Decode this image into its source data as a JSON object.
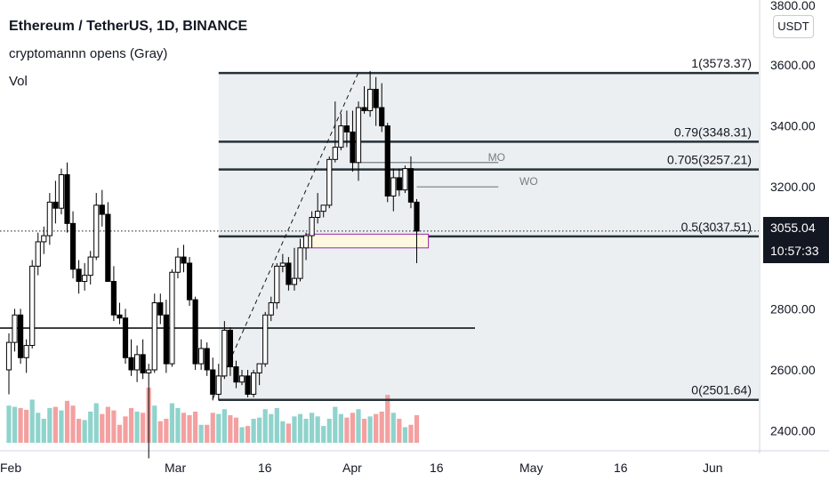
{
  "header": {
    "symbol_title": "Ethereum / TetherUS, 1D, BINANCE",
    "indicator": "cryptomannn opens (Gray)",
    "volume_label": "Vol"
  },
  "price_axis": {
    "currency": "USDT",
    "top_cut_label": "3800.00",
    "tick_labels": [
      "3600.00",
      "3400.00",
      "3200.00",
      "3000.00",
      "2800.00",
      "2600.00",
      "2400.00"
    ]
  },
  "last_price": {
    "value": "3055.04",
    "countdown": "10:57:33"
  },
  "time_axis": {
    "labels": [
      "Feb",
      "Mar",
      "16",
      "Apr",
      "16",
      "May",
      "16",
      "Jun"
    ]
  },
  "colors": {
    "up": "#26a69a",
    "down": "#ef5350",
    "candle": "#000000",
    "fib_fill": "#eceff1",
    "fib_line": "#263238",
    "vol_up": "#8fd3cc",
    "vol_down": "#f4a0a0",
    "zone_fill": "#fff8e1",
    "zone_border": "#9c27b0"
  },
  "chart_data": [
    {
      "type": "candlestick",
      "title": "Ethereum / TetherUS, 1D, BINANCE",
      "ylim": [
        2380,
        3800
      ],
      "x_range": [
        "2022-01-31",
        "2022-06-10"
      ],
      "ohlc": [
        [
          "2022-01-31",
          2600,
          2720,
          2520,
          2690
        ],
        [
          "2022-02-01",
          2690,
          2800,
          2660,
          2780
        ],
        [
          "2022-02-02",
          2780,
          2800,
          2620,
          2640
        ],
        [
          "2022-02-03",
          2640,
          2700,
          2590,
          2680
        ],
        [
          "2022-02-04",
          2680,
          2960,
          2670,
          2940
        ],
        [
          "2022-02-05",
          2940,
          3050,
          2910,
          3020
        ],
        [
          "2022-02-06",
          3020,
          3070,
          2980,
          3040
        ],
        [
          "2022-02-07",
          3040,
          3180,
          3010,
          3150
        ],
        [
          "2022-02-08",
          3150,
          3220,
          3080,
          3130
        ],
        [
          "2022-02-09",
          3130,
          3260,
          3110,
          3240
        ],
        [
          "2022-02-10",
          3240,
          3280,
          3050,
          3080
        ],
        [
          "2022-02-11",
          3080,
          3120,
          2900,
          2930
        ],
        [
          "2022-02-12",
          2930,
          2960,
          2850,
          2890
        ],
        [
          "2022-02-13",
          2890,
          2950,
          2860,
          2910
        ],
        [
          "2022-02-14",
          2910,
          2990,
          2880,
          2970
        ],
        [
          "2022-02-15",
          2970,
          3180,
          2960,
          3140
        ],
        [
          "2022-02-16",
          3140,
          3190,
          3070,
          3110
        ],
        [
          "2022-02-17",
          3110,
          3150,
          2890,
          2890
        ],
        [
          "2022-02-18",
          2890,
          2940,
          2760,
          2780
        ],
        [
          "2022-02-19",
          2780,
          2820,
          2750,
          2770
        ],
        [
          "2022-02-20",
          2770,
          2800,
          2620,
          2640
        ],
        [
          "2022-02-21",
          2640,
          2700,
          2580,
          2600
        ],
        [
          "2022-02-22",
          2600,
          2680,
          2560,
          2650
        ],
        [
          "2022-02-23",
          2650,
          2700,
          2570,
          2590
        ],
        [
          "2022-02-24",
          2590,
          2620,
          2310,
          2600
        ],
        [
          "2022-02-25",
          2600,
          2850,
          2590,
          2820
        ],
        [
          "2022-02-26",
          2820,
          2850,
          2750,
          2780
        ],
        [
          "2022-02-27",
          2780,
          2830,
          2590,
          2620
        ],
        [
          "2022-02-28",
          2620,
          2930,
          2610,
          2920
        ],
        [
          "2022-03-01",
          2920,
          3000,
          2900,
          2970
        ],
        [
          "2022-03-02",
          2970,
          3010,
          2920,
          2950
        ],
        [
          "2022-03-03",
          2950,
          2970,
          2810,
          2830
        ],
        [
          "2022-03-04",
          2830,
          2840,
          2600,
          2620
        ],
        [
          "2022-03-05",
          2620,
          2700,
          2600,
          2670
        ],
        [
          "2022-03-06",
          2670,
          2690,
          2580,
          2600
        ],
        [
          "2022-03-07",
          2600,
          2640,
          2500,
          2520
        ],
        [
          "2022-03-08",
          2520,
          2620,
          2500,
          2580
        ],
        [
          "2022-03-09",
          2580,
          2760,
          2570,
          2730
        ],
        [
          "2022-03-10",
          2730,
          2740,
          2580,
          2610
        ],
        [
          "2022-03-11",
          2610,
          2630,
          2540,
          2560
        ],
        [
          "2022-03-12",
          2560,
          2600,
          2550,
          2580
        ],
        [
          "2022-03-13",
          2580,
          2600,
          2510,
          2520
        ],
        [
          "2022-03-14",
          2520,
          2600,
          2510,
          2590
        ],
        [
          "2022-03-15",
          2590,
          2620,
          2550,
          2620
        ],
        [
          "2022-03-16",
          2620,
          2790,
          2610,
          2780
        ],
        [
          "2022-03-17",
          2780,
          2840,
          2760,
          2820
        ],
        [
          "2022-03-18",
          2820,
          2950,
          2800,
          2940
        ],
        [
          "2022-03-19",
          2940,
          2980,
          2920,
          2950
        ],
        [
          "2022-03-20",
          2950,
          2970,
          2860,
          2880
        ],
        [
          "2022-03-21",
          2880,
          3000,
          2860,
          2900
        ],
        [
          "2022-03-22",
          2900,
          3030,
          2890,
          3000
        ],
        [
          "2022-03-23",
          3000,
          3050,
          2960,
          3040
        ],
        [
          "2022-03-24",
          3040,
          3120,
          3000,
          3100
        ],
        [
          "2022-03-25",
          3100,
          3180,
          3080,
          3120
        ],
        [
          "2022-03-26",
          3120,
          3140,
          3100,
          3140
        ],
        [
          "2022-03-27",
          3140,
          3300,
          3130,
          3290
        ],
        [
          "2022-03-28",
          3290,
          3480,
          3280,
          3330
        ],
        [
          "2022-03-29",
          3330,
          3440,
          3320,
          3400
        ],
        [
          "2022-03-30",
          3400,
          3450,
          3330,
          3380
        ],
        [
          "2022-03-31",
          3380,
          3450,
          3250,
          3280
        ],
        [
          "2022-04-01",
          3280,
          3480,
          3220,
          3460
        ],
        [
          "2022-04-02",
          3460,
          3530,
          3440,
          3450
        ],
        [
          "2022-04-03",
          3450,
          3580,
          3430,
          3520
        ],
        [
          "2022-04-04",
          3520,
          3560,
          3400,
          3460
        ],
        [
          "2022-04-05",
          3460,
          3540,
          3380,
          3400
        ],
        [
          "2022-04-06",
          3400,
          3410,
          3150,
          3170
        ],
        [
          "2022-04-07",
          3170,
          3260,
          3120,
          3230
        ],
        [
          "2022-04-08",
          3230,
          3260,
          3170,
          3190
        ],
        [
          "2022-04-09",
          3190,
          3270,
          3180,
          3260
        ],
        [
          "2022-04-10",
          3260,
          3300,
          3130,
          3150
        ],
        [
          "2022-04-11",
          3150,
          3160,
          2950,
          3055.04
        ]
      ],
      "volume": [
        [
          "2022-01-31",
          62,
          "up"
        ],
        [
          "2022-02-01",
          60,
          "up"
        ],
        [
          "2022-02-02",
          58,
          "down"
        ],
        [
          "2022-02-03",
          55,
          "down"
        ],
        [
          "2022-02-04",
          72,
          "up"
        ],
        [
          "2022-02-05",
          50,
          "up"
        ],
        [
          "2022-02-06",
          40,
          "up"
        ],
        [
          "2022-02-07",
          58,
          "up"
        ],
        [
          "2022-02-08",
          60,
          "down"
        ],
        [
          "2022-02-09",
          54,
          "up"
        ],
        [
          "2022-02-10",
          70,
          "down"
        ],
        [
          "2022-02-11",
          62,
          "down"
        ],
        [
          "2022-02-12",
          40,
          "down"
        ],
        [
          "2022-02-13",
          38,
          "up"
        ],
        [
          "2022-02-14",
          52,
          "up"
        ],
        [
          "2022-02-15",
          66,
          "up"
        ],
        [
          "2022-02-16",
          48,
          "down"
        ],
        [
          "2022-02-17",
          60,
          "down"
        ],
        [
          "2022-02-18",
          54,
          "down"
        ],
        [
          "2022-02-19",
          30,
          "down"
        ],
        [
          "2022-02-20",
          44,
          "down"
        ],
        [
          "2022-02-21",
          58,
          "down"
        ],
        [
          "2022-02-22",
          52,
          "up"
        ],
        [
          "2022-02-23",
          50,
          "down"
        ],
        [
          "2022-02-24",
          92,
          "down"
        ],
        [
          "2022-02-25",
          62,
          "up"
        ],
        [
          "2022-02-26",
          36,
          "down"
        ],
        [
          "2022-02-27",
          40,
          "down"
        ],
        [
          "2022-02-28",
          66,
          "up"
        ],
        [
          "2022-03-01",
          58,
          "up"
        ],
        [
          "2022-03-02",
          50,
          "down"
        ],
        [
          "2022-03-03",
          46,
          "down"
        ],
        [
          "2022-03-04",
          52,
          "down"
        ],
        [
          "2022-03-05",
          30,
          "up"
        ],
        [
          "2022-03-06",
          30,
          "down"
        ],
        [
          "2022-03-07",
          50,
          "down"
        ],
        [
          "2022-03-08",
          48,
          "up"
        ],
        [
          "2022-03-09",
          56,
          "up"
        ],
        [
          "2022-03-10",
          46,
          "down"
        ],
        [
          "2022-03-11",
          42,
          "down"
        ],
        [
          "2022-03-12",
          26,
          "up"
        ],
        [
          "2022-03-13",
          28,
          "down"
        ],
        [
          "2022-03-14",
          40,
          "up"
        ],
        [
          "2022-03-15",
          42,
          "up"
        ],
        [
          "2022-03-16",
          56,
          "up"
        ],
        [
          "2022-03-17",
          48,
          "up"
        ],
        [
          "2022-03-18",
          58,
          "up"
        ],
        [
          "2022-03-19",
          36,
          "up"
        ],
        [
          "2022-03-20",
          32,
          "down"
        ],
        [
          "2022-03-21",
          44,
          "up"
        ],
        [
          "2022-03-22",
          48,
          "up"
        ],
        [
          "2022-03-23",
          40,
          "up"
        ],
        [
          "2022-03-24",
          50,
          "up"
        ],
        [
          "2022-03-25",
          44,
          "up"
        ],
        [
          "2022-03-26",
          28,
          "up"
        ],
        [
          "2022-03-27",
          40,
          "up"
        ],
        [
          "2022-03-28",
          60,
          "up"
        ],
        [
          "2022-03-29",
          48,
          "up"
        ],
        [
          "2022-03-30",
          42,
          "down"
        ],
        [
          "2022-03-31",
          50,
          "down"
        ],
        [
          "2022-04-01",
          56,
          "up"
        ],
        [
          "2022-04-02",
          40,
          "down"
        ],
        [
          "2022-04-03",
          44,
          "up"
        ],
        [
          "2022-04-04",
          48,
          "down"
        ],
        [
          "2022-04-05",
          52,
          "down"
        ],
        [
          "2022-04-06",
          80,
          "down"
        ],
        [
          "2022-04-07",
          50,
          "up"
        ],
        [
          "2022-04-08",
          40,
          "down"
        ],
        [
          "2022-04-09",
          26,
          "up"
        ],
        [
          "2022-04-10",
          30,
          "down"
        ],
        [
          "2022-04-11",
          46,
          "down"
        ]
      ],
      "fibonacci": {
        "start_date": "2022-03-08",
        "end_date": "2022-06-10",
        "levels": [
          {
            "ratio": "1",
            "price": 3573.37,
            "label": "1(3573.37)"
          },
          {
            "ratio": "0.79",
            "price": 3348.31,
            "label": "0.79(3348.31)"
          },
          {
            "ratio": "0.705",
            "price": 3257.21,
            "label": "0.705(3257.21)"
          },
          {
            "ratio": "0.5",
            "price": 3037.51,
            "label": "0.5(3037.51)"
          },
          {
            "ratio": "0",
            "price": 2501.64,
            "label": "0(2501.64)"
          }
        ]
      },
      "horizontal_rays": [
        {
          "label": "MO",
          "price": 3280,
          "from": "2022-03-31",
          "to": "2022-04-25"
        },
        {
          "label": "WO",
          "price": 3200,
          "from": "2022-04-11",
          "to": "2022-04-25"
        }
      ],
      "support_line": {
        "price": 2737,
        "from": "2022-01-31",
        "to": "2022-04-21"
      },
      "zone": {
        "from": "2022-03-23",
        "to": "2022-04-13",
        "top": 3045,
        "bottom": 3000
      },
      "trend_line": {
        "from": [
          "2022-03-07",
          2505
        ],
        "to": [
          "2022-04-01",
          3575
        ]
      },
      "last_price_line": 3055.04
    }
  ]
}
